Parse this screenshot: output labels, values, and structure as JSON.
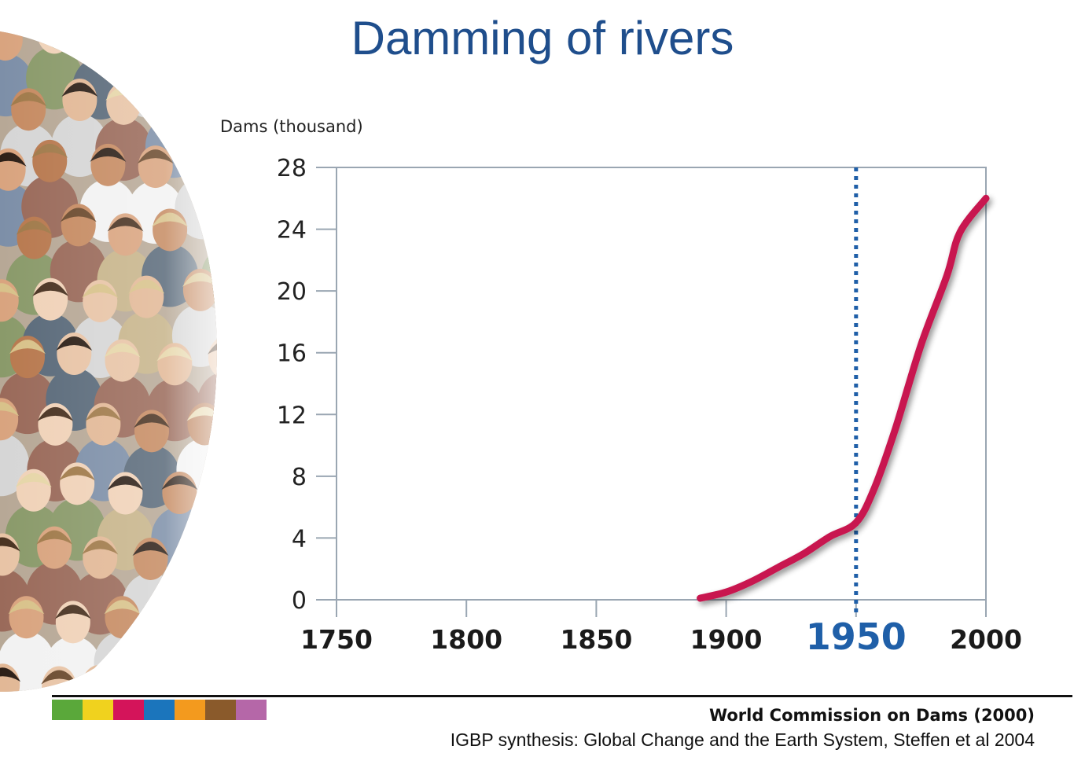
{
  "slide": {
    "title": "Damming of rivers"
  },
  "footer": {
    "credit_primary": "World Commission on Dams (2000)",
    "credit_secondary": "IGBP synthesis: Global Change and the Earth System, Steffen et al 2004",
    "strip_colors": [
      "#5aa83a",
      "#f0d21e",
      "#d4145a",
      "#1b75bc",
      "#f39a1e",
      "#8a5a2b",
      "#b567a8"
    ]
  },
  "photo": {
    "icon": "crowd-photo"
  },
  "chart_data": {
    "type": "line",
    "title": "",
    "xlabel": "",
    "ylabel": "Dams (thousand)",
    "xlim": [
      1750,
      2000
    ],
    "ylim": [
      0,
      28
    ],
    "x_ticks": [
      1750,
      1800,
      1850,
      1900,
      1950,
      2000
    ],
    "y_ticks": [
      0,
      4,
      8,
      12,
      16,
      20,
      24,
      28
    ],
    "highlight_tick": 1950,
    "reference_line": {
      "x": 1950,
      "style": "dotted",
      "color": "#1f5fa8"
    },
    "series": [
      {
        "color": "#c8174f",
        "x": [
          1890,
          1900,
          1910,
          1920,
          1930,
          1940,
          1950,
          1957,
          1965,
          1975,
          1985,
          1990,
          2000
        ],
        "y": [
          0.1,
          0.5,
          1.2,
          2.1,
          3.0,
          4.1,
          5.0,
          7.2,
          11.0,
          16.5,
          21.0,
          23.8,
          26.0
        ]
      }
    ],
    "grid": false,
    "legend": "none"
  }
}
